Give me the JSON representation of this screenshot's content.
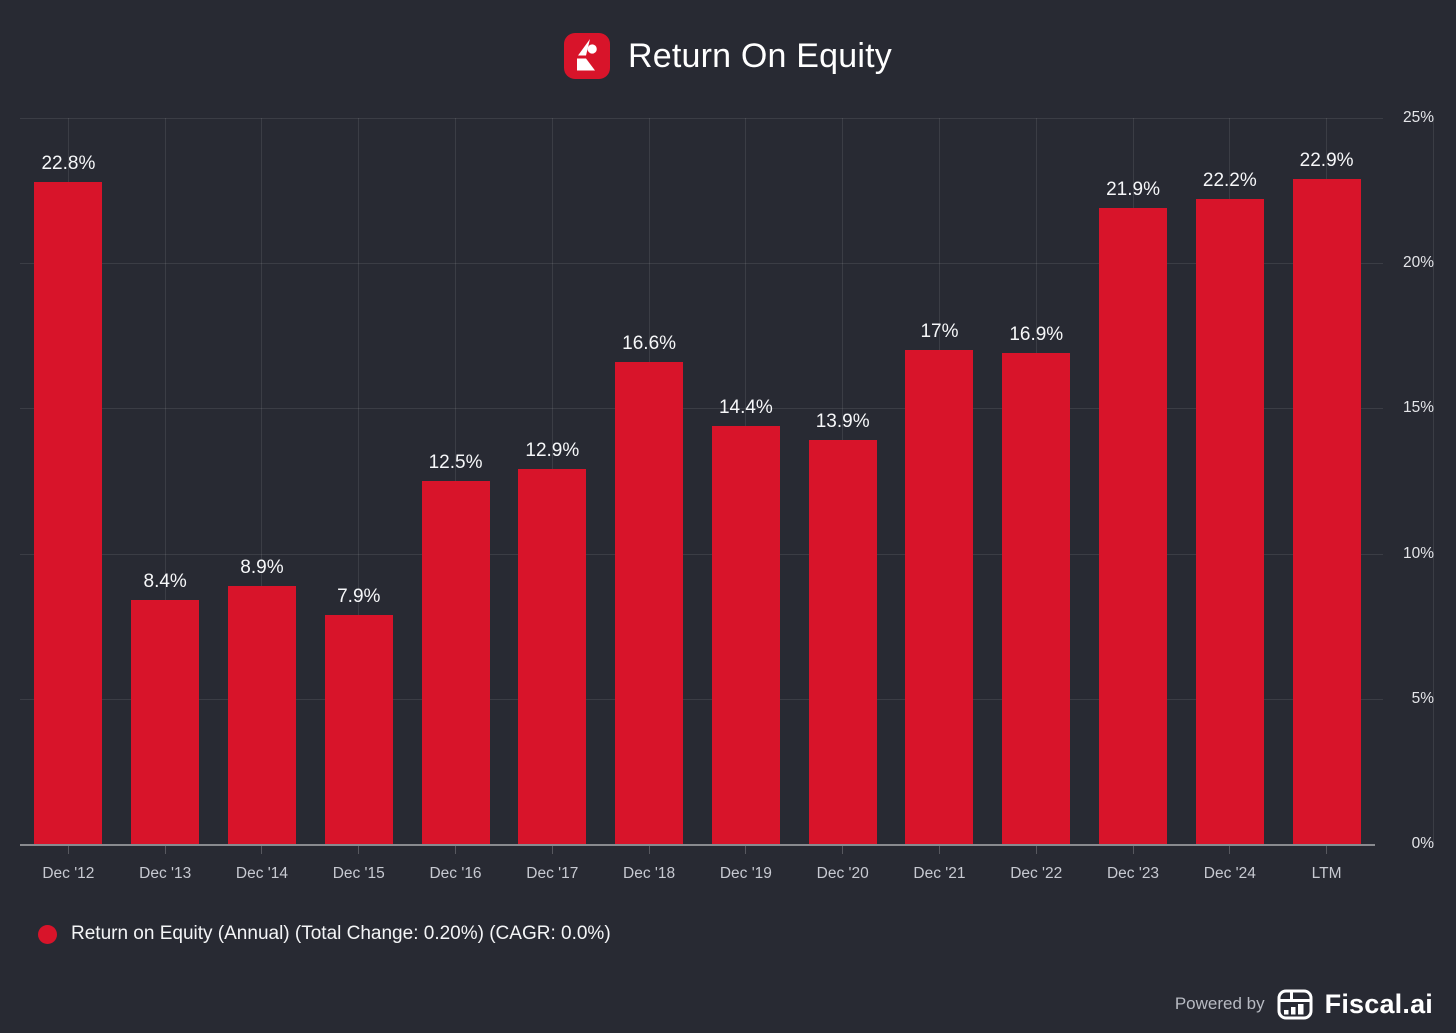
{
  "header": {
    "title": "Return On Equity"
  },
  "colors": {
    "background": "#282a33",
    "bar": "#d8142a",
    "icon_background": "#d8142a",
    "grid": "rgba(255,255,255,0.09)",
    "axis": "rgba(255,255,255,0.45)"
  },
  "chart_data": {
    "type": "bar",
    "title": "Return On Equity",
    "categories": [
      "Dec '12",
      "Dec '13",
      "Dec '14",
      "Dec '15",
      "Dec '16",
      "Dec '17",
      "Dec '18",
      "Dec '19",
      "Dec '20",
      "Dec '21",
      "Dec '22",
      "Dec '23",
      "Dec '24",
      "LTM"
    ],
    "values": [
      22.8,
      8.4,
      8.9,
      7.9,
      12.5,
      12.9,
      16.6,
      14.4,
      13.9,
      17,
      16.9,
      21.9,
      22.2,
      22.9
    ],
    "value_labels": [
      "22.8%",
      "8.4%",
      "8.9%",
      "7.9%",
      "12.5%",
      "12.9%",
      "16.6%",
      "14.4%",
      "13.9%",
      "17%",
      "16.9%",
      "21.9%",
      "22.2%",
      "22.9%"
    ],
    "xlabel": "",
    "ylabel": "",
    "ylim": [
      0,
      25
    ],
    "ytick_values": [
      0,
      5,
      10,
      15,
      20,
      25
    ],
    "ytick_labels": [
      "0%",
      "5%",
      "10%",
      "15%",
      "20%",
      "25%"
    ],
    "yaxis_position": "right",
    "grid": true,
    "bar_color": "#d8142a",
    "series_name": "Return on Equity (Annual)"
  },
  "legend": {
    "label": "Return on Equity (Annual) (Total Change: 0.20%) (CAGR: 0.0%)",
    "marker_color": "#d8142a"
  },
  "footer": {
    "powered_by": "Powered by",
    "brand": "Fiscal.ai"
  }
}
